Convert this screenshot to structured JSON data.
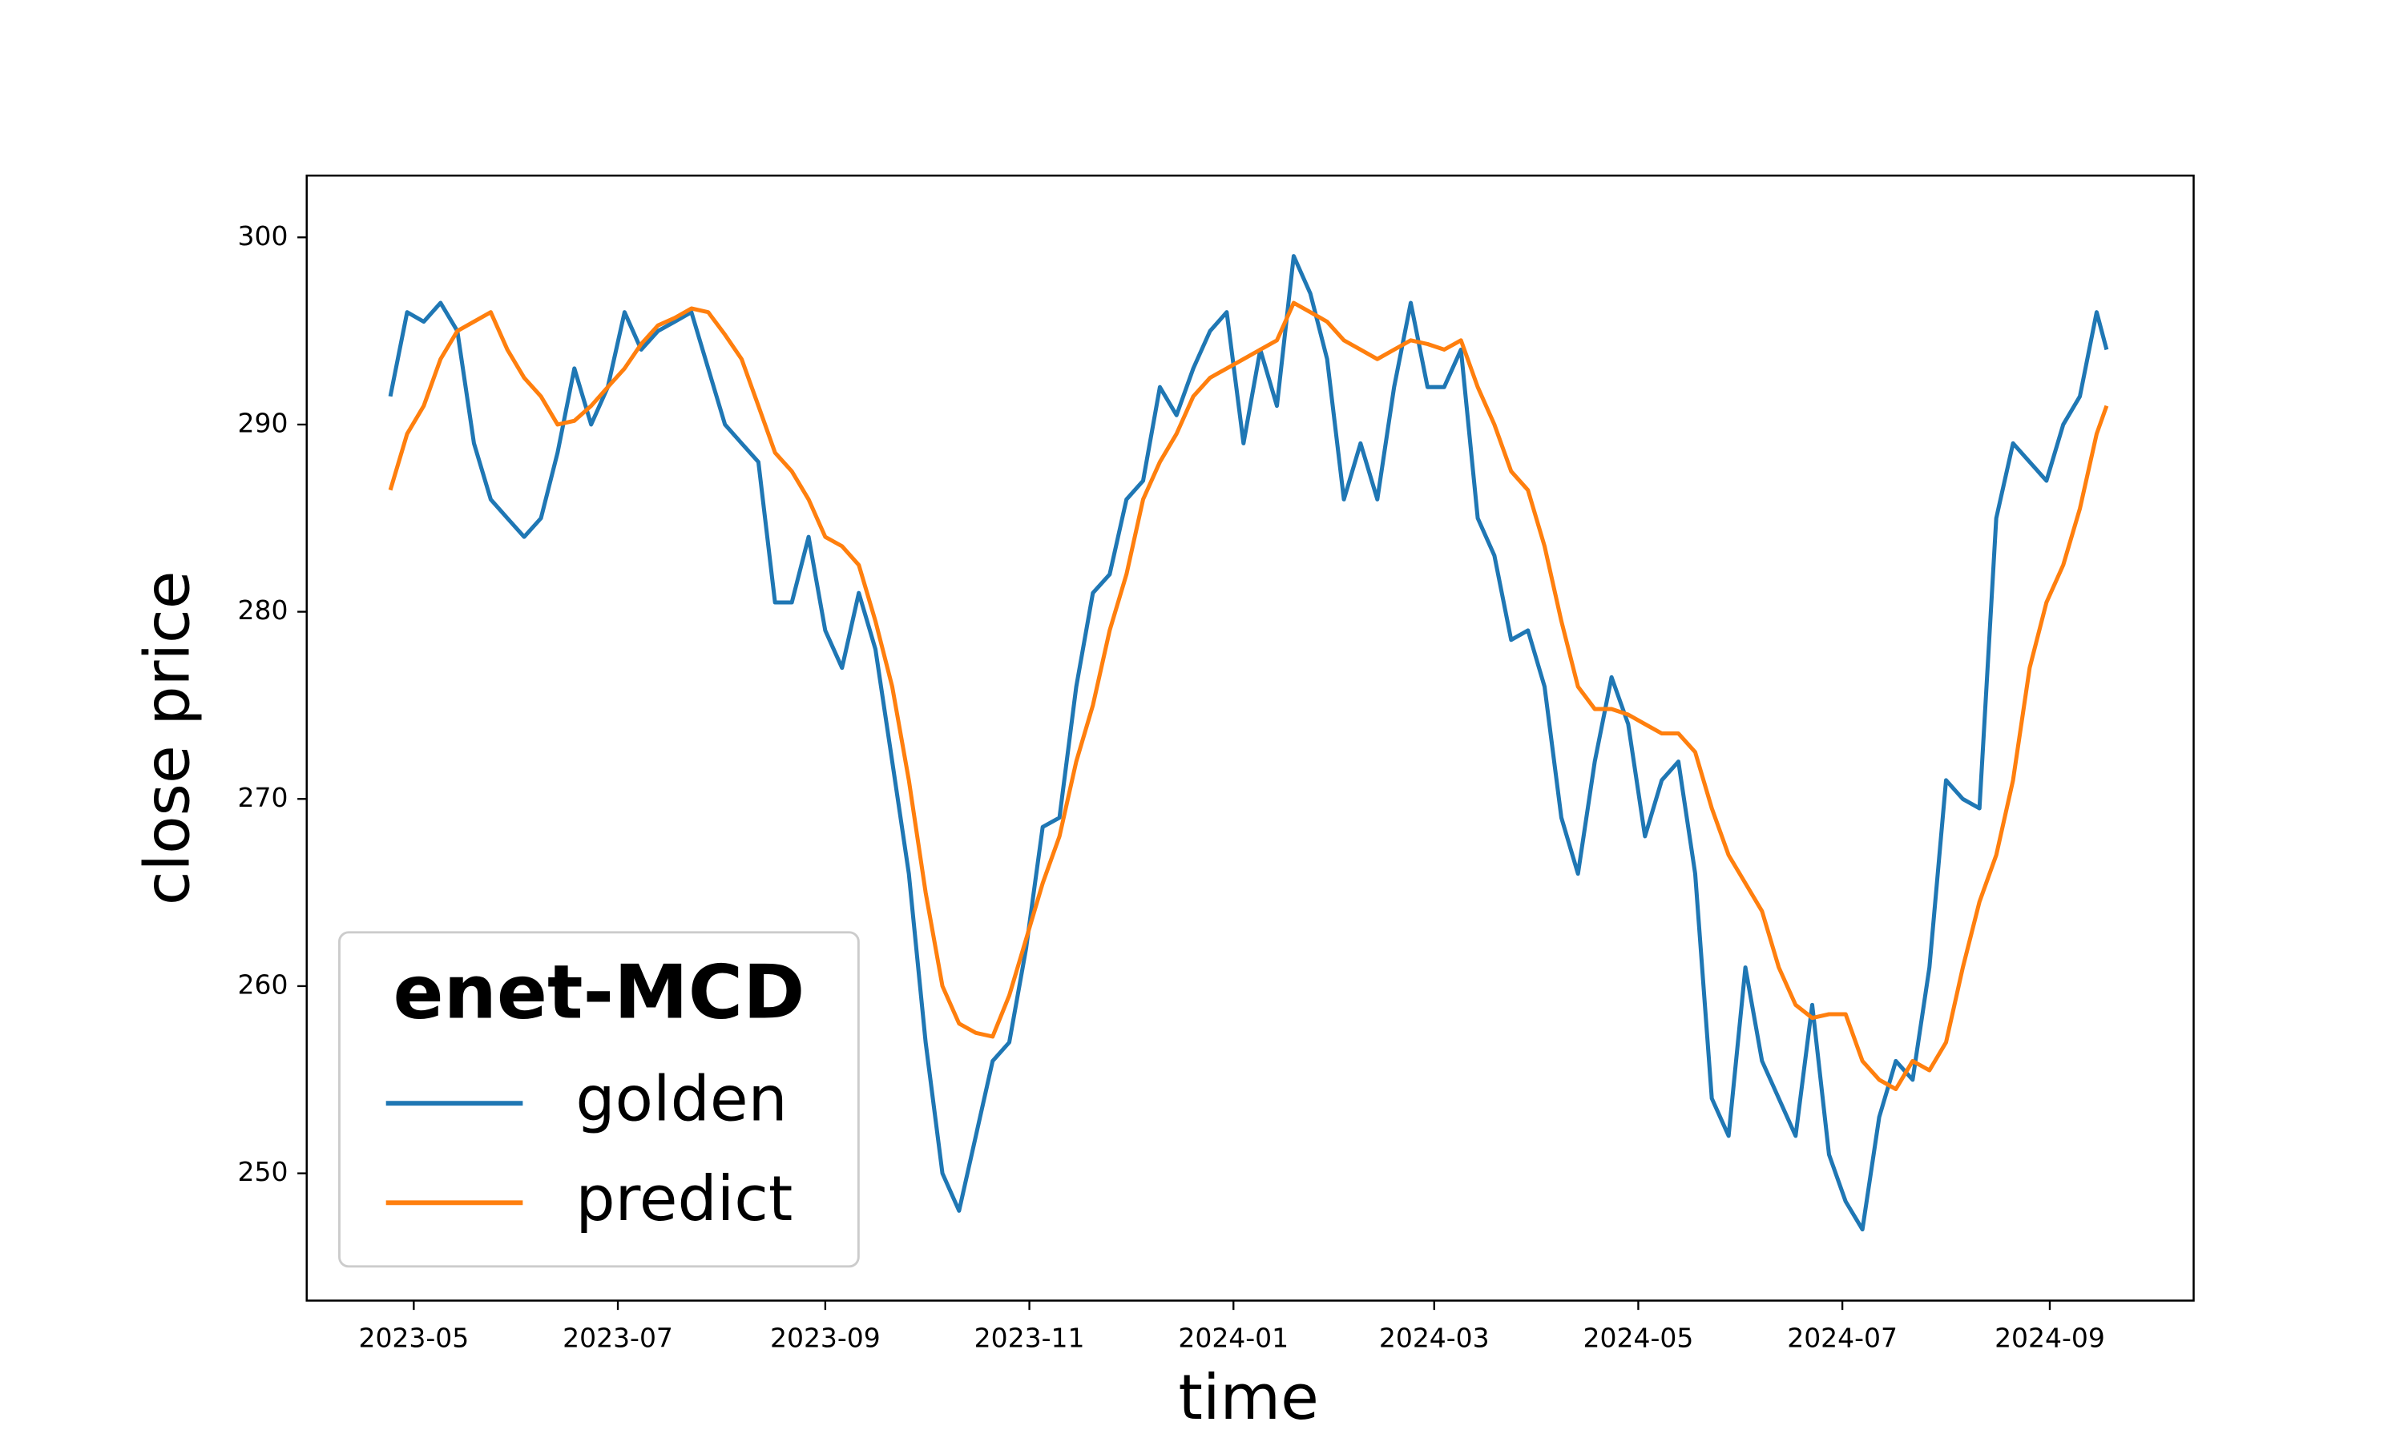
{
  "chart_data": {
    "type": "line",
    "xlabel": "time",
    "ylabel": "close price",
    "legend_title": "enet-MCD",
    "legend_loc": "lower left",
    "xlim": [
      -32,
      532
    ],
    "ylim": [
      243.2,
      303.3
    ],
    "xticks": [
      {
        "value": 0,
        "label": "2023-05"
      },
      {
        "value": 61,
        "label": "2023-07"
      },
      {
        "value": 123,
        "label": "2023-09"
      },
      {
        "value": 184,
        "label": "2023-11"
      },
      {
        "value": 245,
        "label": "2024-01"
      },
      {
        "value": 305,
        "label": "2024-03"
      },
      {
        "value": 366,
        "label": "2024-05"
      },
      {
        "value": 427,
        "label": "2024-07"
      },
      {
        "value": 489,
        "label": "2024-09"
      }
    ],
    "yticks": [
      250,
      260,
      270,
      280,
      290,
      300
    ],
    "x": [
      -7,
      -2,
      3,
      8,
      13,
      18,
      23,
      28,
      33,
      38,
      43,
      48,
      53,
      58,
      63,
      68,
      73,
      78,
      83,
      88,
      93,
      98,
      103,
      108,
      113,
      118,
      123,
      128,
      133,
      138,
      143,
      148,
      153,
      158,
      163,
      168,
      173,
      178,
      183,
      188,
      193,
      198,
      203,
      208,
      213,
      218,
      223,
      228,
      233,
      238,
      243,
      248,
      253,
      258,
      263,
      268,
      273,
      278,
      283,
      288,
      293,
      298,
      303,
      308,
      313,
      318,
      323,
      328,
      333,
      338,
      343,
      348,
      353,
      358,
      363,
      368,
      373,
      378,
      383,
      388,
      393,
      398,
      403,
      408,
      413,
      418,
      423,
      428,
      433,
      438,
      443,
      448,
      453,
      458,
      463,
      468,
      473,
      478,
      483,
      488,
      493,
      498,
      503,
      506
    ],
    "series": [
      {
        "name": "golden",
        "color": "#1f77b4",
        "values": [
          291.5,
          296,
          295.5,
          296.5,
          295,
          289,
          286,
          285,
          284,
          285,
          288.5,
          293,
          290,
          292,
          296,
          294,
          295,
          295.5,
          296,
          293,
          290,
          289,
          288,
          280.5,
          280.5,
          284,
          279,
          277,
          281,
          278,
          272,
          266,
          257,
          250,
          248,
          252,
          256,
          257,
          262,
          268.5,
          269,
          276,
          281,
          282,
          286,
          287,
          292,
          290.5,
          293,
          295,
          296,
          289,
          294,
          291,
          299,
          297,
          293.5,
          286,
          289,
          286,
          292,
          296.5,
          292,
          292,
          294,
          285,
          283,
          278.5,
          279,
          276,
          269,
          266,
          272,
          276.5,
          274,
          268,
          271,
          272,
          266,
          254,
          252,
          261,
          256,
          254,
          252,
          259,
          251,
          248.5,
          247,
          253,
          256,
          255,
          261,
          271,
          270,
          269.5,
          285,
          289,
          288,
          287,
          290,
          291.5,
          296,
          294
        ]
      },
      {
        "name": "predict",
        "color": "#ff7f0e",
        "values": [
          286.5,
          289.5,
          291,
          293.5,
          295,
          295.5,
          296,
          294,
          292.5,
          291.5,
          290,
          290.2,
          291,
          292,
          293,
          294.3,
          295.3,
          295.7,
          296.2,
          296,
          294.8,
          293.5,
          291,
          288.5,
          287.5,
          286,
          284,
          283.5,
          282.5,
          279.5,
          276,
          271,
          265,
          260,
          258,
          257.5,
          257.3,
          259.5,
          262.5,
          265.5,
          268,
          272,
          275,
          279,
          282,
          286,
          288,
          289.5,
          291.5,
          292.5,
          293,
          293.5,
          294,
          294.5,
          296.5,
          296,
          295.5,
          294.5,
          294,
          293.5,
          294,
          294.5,
          294.3,
          294,
          294.5,
          292,
          290,
          287.5,
          286.5,
          283.5,
          279.5,
          276,
          274.8,
          274.8,
          274.5,
          274,
          273.5,
          273.5,
          272.5,
          269.5,
          267,
          265.5,
          264,
          261,
          259,
          258.3,
          258.5,
          258.5,
          256,
          255,
          254.5,
          256,
          255.5,
          257,
          261,
          264.5,
          267,
          271,
          277,
          280.5,
          282.5,
          285.5,
          289.5,
          291
        ]
      }
    ]
  }
}
